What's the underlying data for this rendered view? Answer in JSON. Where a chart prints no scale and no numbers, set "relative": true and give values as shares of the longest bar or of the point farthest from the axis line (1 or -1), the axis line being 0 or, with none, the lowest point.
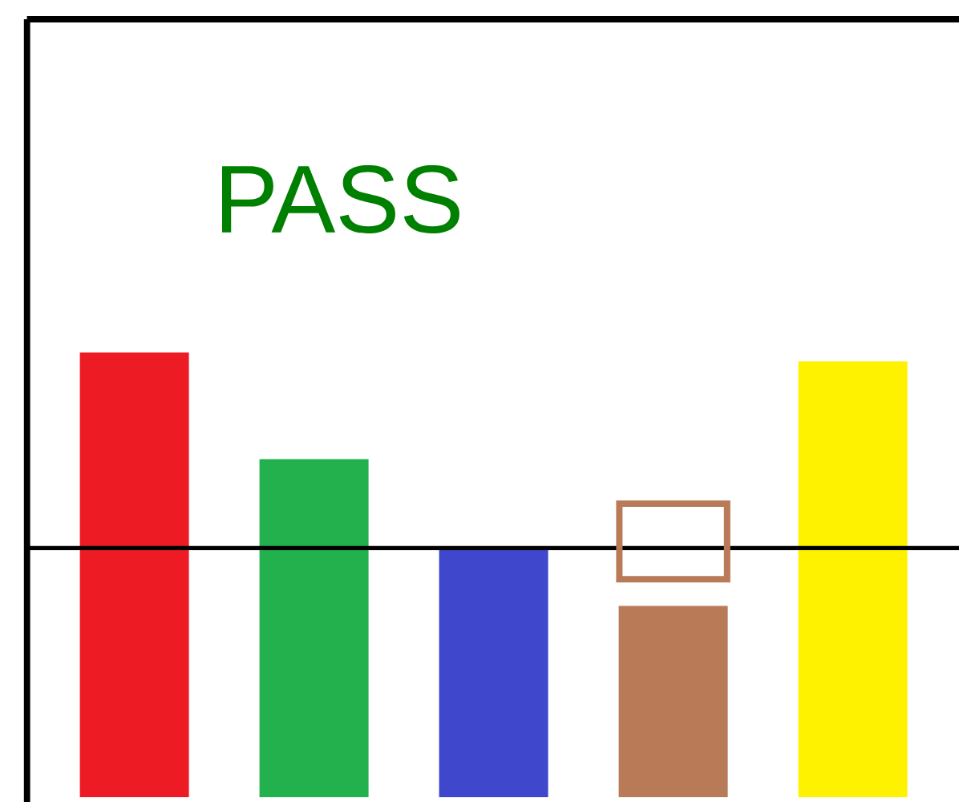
{
  "chart_data": {
    "type": "bar",
    "relative": true,
    "categories": [
      null,
      null,
      null,
      null,
      null
    ],
    "series": [
      {
        "colors": [
          "#ed1c24",
          "#22b14c",
          "#3f48cc",
          "#b97a57",
          "#fff200"
        ],
        "values": [
          1,
          0.76,
          0.56,
          0.43,
          0.98
        ]
      }
    ],
    "ref_lines": [
      {
        "axis": "y",
        "value": 0.56,
        "color": "#000000"
      }
    ],
    "annotations": [
      "PASS"
    ]
  }
}
